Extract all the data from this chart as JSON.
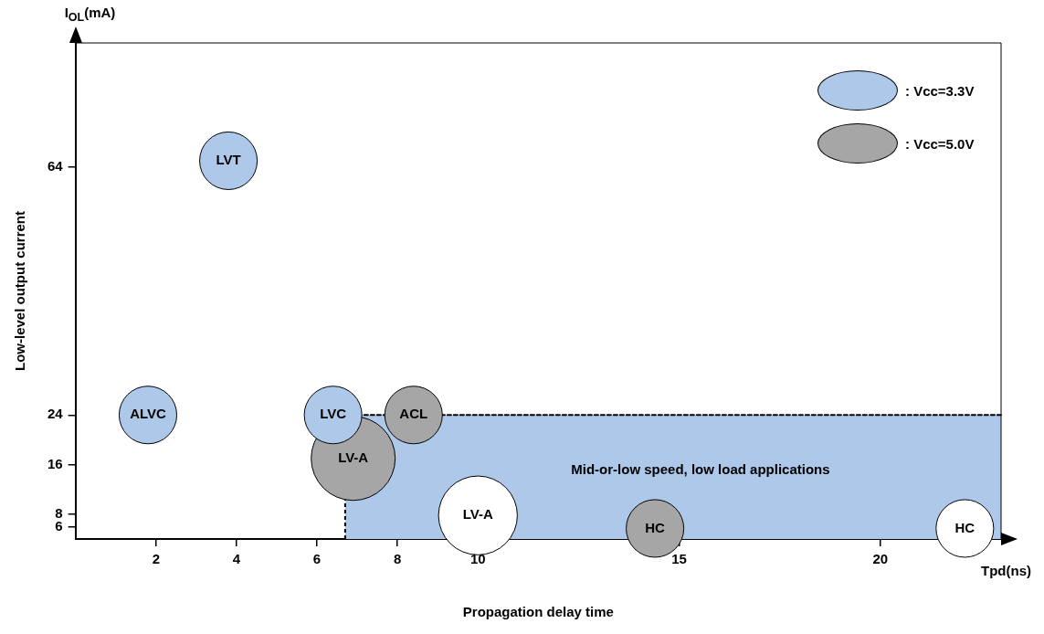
{
  "chart_data": {
    "type": "bubble",
    "xlabel": "Propagation delay time",
    "ylabel": "Low-level output current",
    "xlim": [
      0,
      23
    ],
    "xticks": [
      2,
      4,
      6,
      8,
      10,
      15,
      20
    ],
    "ylim": [
      4,
      84
    ],
    "yticks": [
      6,
      8,
      16,
      24,
      64
    ],
    "grid": false,
    "legend": "top right",
    "series": [
      {
        "name": ": Vcc=3.3V",
        "color": "#adc8e8",
        "x": [
          1.8,
          3.8,
          6.4
        ],
        "values": [
          24,
          65,
          24
        ],
        "sizes": [
          0.47,
          0.47,
          0.47
        ]
      },
      {
        "name": ": Vcc=5.0V",
        "color": "#a6a6a6",
        "x": [
          6.9,
          8.4,
          14.4
        ],
        "values": [
          17,
          24,
          5.7
        ],
        "sizes": [
          1,
          0.47,
          0.47
        ]
      },
      {
        "color": "#ffffff",
        "x": [
          10,
          22.1
        ],
        "values": [
          7.8,
          5.7
        ],
        "sizes": [
          0.88,
          0.47
        ]
      }
    ],
    "bands": [
      {
        "axis": "x",
        "from": 6.7,
        "to": 23,
        "label": "Mid-or-low speed, low load applications",
        "color": "#adc8e8"
      }
    ],
    "ref_lines": [
      {
        "axis": "y",
        "value": 24,
        "line_style": "dashed"
      }
    ],
    "annotations": [
      "I$_{OL}$(mA)",
      "Tpd(ns)",
      {
        "text": "ALVC",
        "x": 1.8,
        "y": 24
      },
      {
        "text": "LVT",
        "x": 3.8,
        "y": 65
      },
      {
        "text": "LVC",
        "x": 6.4,
        "y": 24
      },
      {
        "text": "LV-A",
        "x": 6.9,
        "y": 17
      },
      {
        "text": "ACL",
        "x": 8.4,
        "y": 24
      },
      {
        "text": "HC",
        "x": 14.4,
        "y": 5.7
      },
      {
        "text": "LV-A",
        "x": 10,
        "y": 7.8
      },
      {
        "text": "HC",
        "x": 22.1,
        "y": 5.7
      }
    ]
  }
}
